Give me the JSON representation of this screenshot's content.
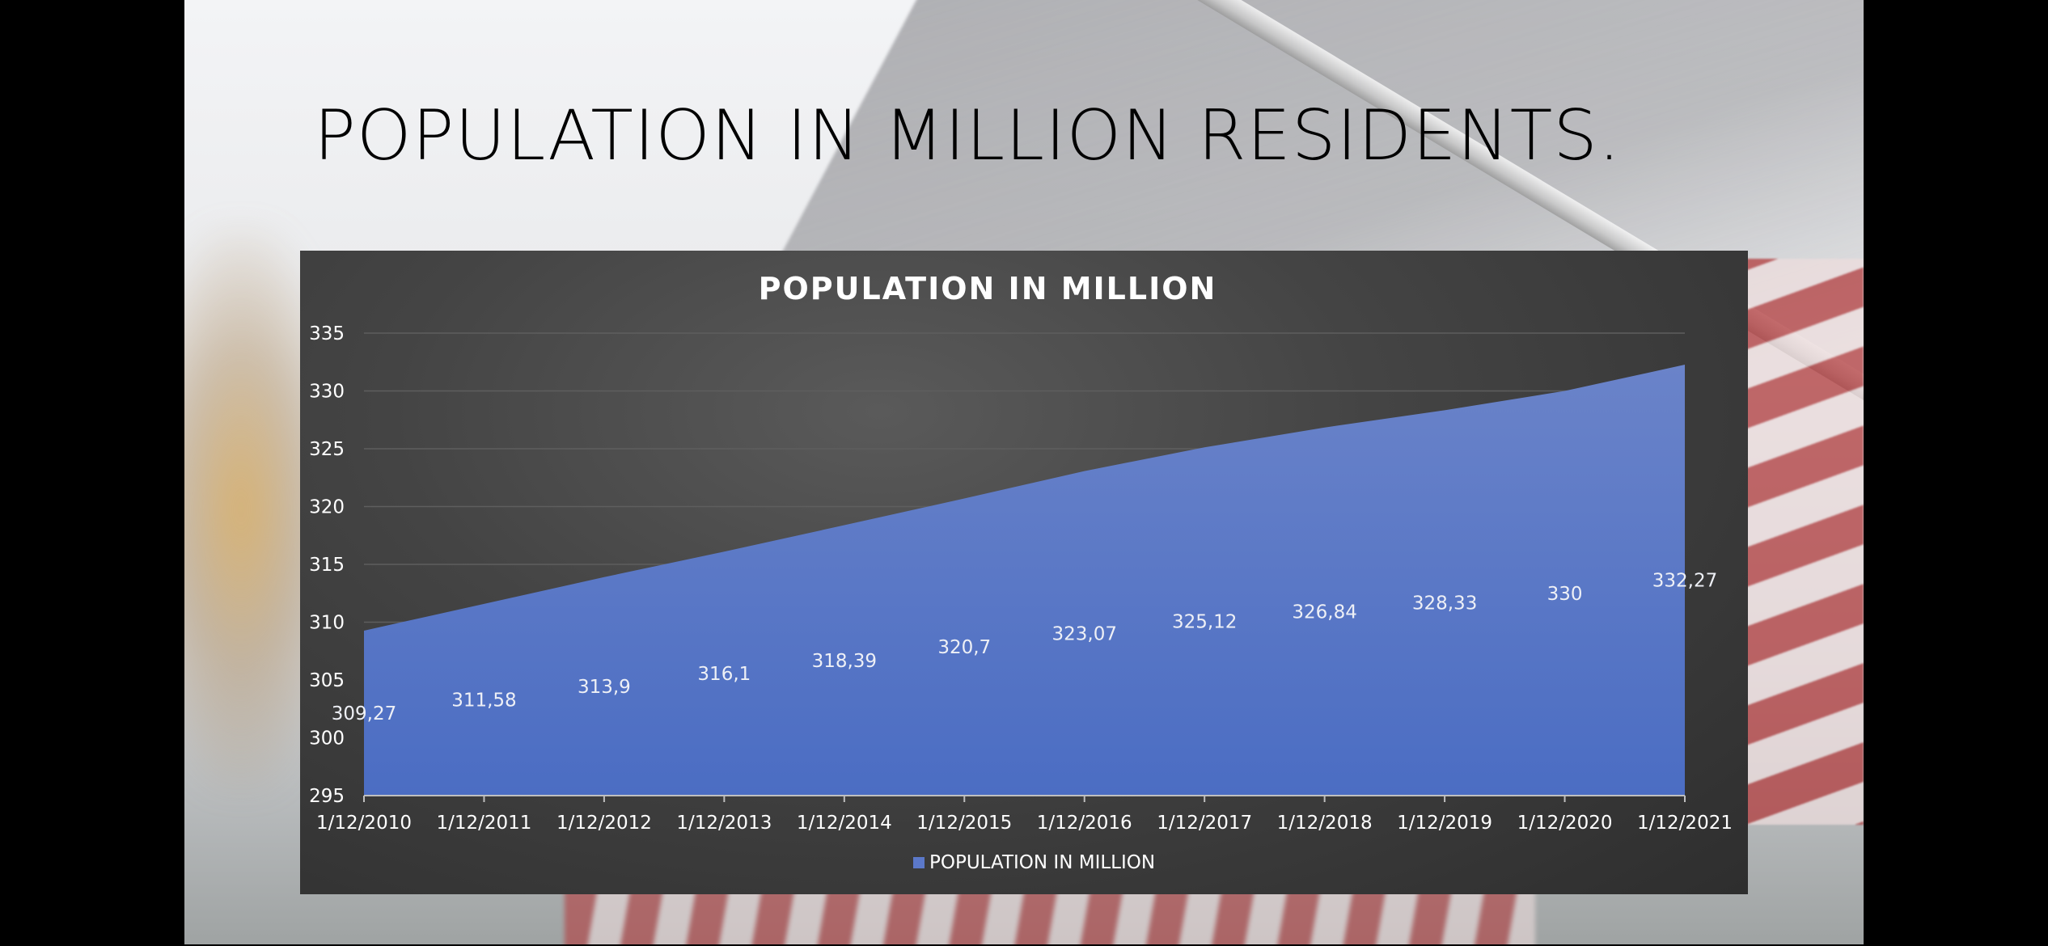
{
  "slide": {
    "title": "POPULATION IN MILLION RESIDENTS."
  },
  "chart_data": {
    "type": "area",
    "title": "POPULATION IN MILLION",
    "xlabel": "",
    "ylabel": "",
    "categories": [
      "1/12/2010",
      "1/12/2011",
      "1/12/2012",
      "1/12/2013",
      "1/12/2014",
      "1/12/2015",
      "1/12/2016",
      "1/12/2017",
      "1/12/2018",
      "1/12/2019",
      "1/12/2020",
      "1/12/2021"
    ],
    "series": [
      {
        "name": "POPULATION IN MILLION",
        "values": [
          309.27,
          311.58,
          313.9,
          316.1,
          318.39,
          320.7,
          323.07,
          325.12,
          326.84,
          328.33,
          330,
          332.27
        ],
        "labels": [
          "309,27",
          "311,58",
          "313,9",
          "316,1",
          "318,39",
          "320,7",
          "323,07",
          "325,12",
          "326,84",
          "328,33",
          "330",
          "332,27"
        ],
        "color": "#5b78c9"
      }
    ],
    "ylim": [
      295,
      335
    ],
    "yticks": [
      295,
      300,
      305,
      310,
      315,
      320,
      325,
      330,
      335
    ],
    "grid": true,
    "legend": "bottom",
    "colors": {
      "background": "#3f3f3f",
      "fill_top": "#6a83c9",
      "fill_bottom": "#4d6fc4",
      "gridline": "#5e5e5e",
      "axis": "#bfbfbf"
    }
  }
}
